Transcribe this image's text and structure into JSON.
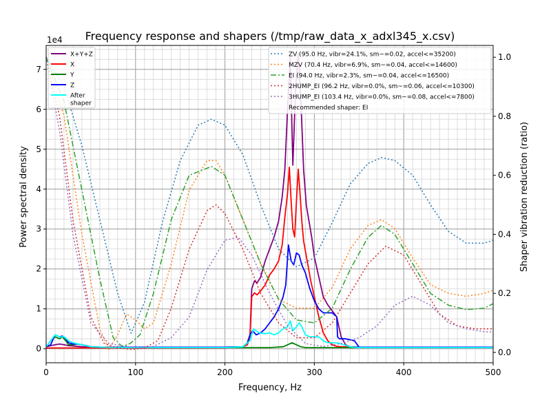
{
  "chart_data": {
    "type": "line",
    "title": "Frequency response and shapers (/tmp/raw_data_x_adxl345_x.csv)",
    "xlabel": "Frequency, Hz",
    "ylabel": "Power spectral density",
    "y2label": "Shaper vibration reduction (ratio)",
    "y_multiplier": "1e4",
    "xlim": [
      0,
      500
    ],
    "ylim": [
      -0.35,
      7.6
    ],
    "y2lim": [
      -0.035,
      1.04
    ],
    "x_ticks": [
      0,
      100,
      200,
      300,
      400,
      500
    ],
    "y_ticks": [
      0,
      1,
      2,
      3,
      4,
      5,
      6,
      7
    ],
    "y2_ticks": [
      0.0,
      0.2,
      0.4,
      0.6,
      0.8,
      1.0
    ],
    "grid": true,
    "legend_left": {
      "placement": "upper-left",
      "entries": [
        {
          "name": "X+Y+Z",
          "color": "#800080"
        },
        {
          "name": "X",
          "color": "#ff0000"
        },
        {
          "name": "Y",
          "color": "#008000"
        },
        {
          "name": "Z",
          "color": "#0000ff"
        },
        {
          "name": "After\nshaper",
          "color": "#00ffff"
        }
      ]
    },
    "legend_right": {
      "placement": "upper-right",
      "entries": [
        {
          "name": "ZV (95.0 Hz, vibr=24.1%, sm~=0.02, accel<=35200)",
          "color": "#1f77b4"
        },
        {
          "name": "MZV (70.4 Hz, vibr=6.9%, sm~=0.04, accel<=14600)",
          "color": "#ff7f0e"
        },
        {
          "name": "EI (94.0 Hz, vibr=2.3%, sm~=0.04, accel<=16500)",
          "color": "#2ca02c"
        },
        {
          "name": "2HUMP_EI (96.2 Hz, vibr=0.0%, sm~=0.06, accel<=10300)",
          "color": "#d62728"
        },
        {
          "name": "3HUMP_EI (103.4 Hz, vibr=0.0%, sm~=0.08, accel<=7800)",
          "color": "#9467bd"
        }
      ],
      "note": "Recommended shaper: EI"
    },
    "series": [
      {
        "name": "X+Y+Z",
        "axis": "left",
        "color": "#800080",
        "width": 1.8,
        "dash": "",
        "x": [
          0,
          5,
          10,
          15,
          20,
          25,
          30,
          35,
          40,
          50,
          60,
          80,
          100,
          150,
          200,
          220,
          225,
          228,
          230,
          233,
          236,
          240,
          245,
          250,
          255,
          260,
          264,
          267,
          270,
          273,
          276,
          279,
          282,
          285,
          288,
          291,
          294,
          297,
          300,
          305,
          310,
          315,
          320,
          325,
          330,
          335,
          340,
          345,
          350,
          400,
          450,
          500
        ],
        "y": [
          0.05,
          0.08,
          0.1,
          0.12,
          0.1,
          0.08,
          0.07,
          0.06,
          0.05,
          0.05,
          0.04,
          0.04,
          0.04,
          0.04,
          0.04,
          0.05,
          0.1,
          0.3,
          1.5,
          1.7,
          1.65,
          1.8,
          2.2,
          2.5,
          2.8,
          3.2,
          3.8,
          4.5,
          6.0,
          7.3,
          4.6,
          6.5,
          7.4,
          6.2,
          4.5,
          3.6,
          3.2,
          2.8,
          2.3,
          1.8,
          1.3,
          1.1,
          0.95,
          0.8,
          0.3,
          0.1,
          0.05,
          0.05,
          0.04,
          0.04,
          0.04,
          0.04
        ]
      },
      {
        "name": "X",
        "axis": "left",
        "color": "#ff0000",
        "width": 1.8,
        "dash": "",
        "x": [
          0,
          50,
          100,
          150,
          200,
          220,
          225,
          228,
          230,
          233,
          236,
          240,
          245,
          250,
          255,
          260,
          264,
          267,
          270,
          272,
          274,
          276,
          278,
          280,
          282,
          284,
          286,
          288,
          292,
          296,
          300,
          305,
          310,
          315,
          320,
          325,
          330,
          335,
          340,
          350,
          400,
          500
        ],
        "y": [
          0.02,
          0.02,
          0.02,
          0.02,
          0.02,
          0.05,
          0.1,
          0.3,
          1.3,
          1.4,
          1.35,
          1.45,
          1.6,
          1.85,
          2.0,
          2.2,
          2.6,
          3.3,
          3.9,
          4.55,
          3.7,
          3.0,
          2.8,
          3.7,
          4.5,
          3.9,
          3.2,
          2.7,
          2.2,
          1.7,
          1.3,
          0.8,
          0.4,
          0.2,
          0.1,
          0.06,
          0.05,
          0.05,
          0.04,
          0.03,
          0.03,
          0.03
        ]
      },
      {
        "name": "Y",
        "axis": "left",
        "color": "#008000",
        "width": 1.8,
        "dash": "",
        "x": [
          0,
          5,
          10,
          15,
          18,
          22,
          25,
          30,
          35,
          40,
          45,
          50,
          55,
          60,
          70,
          80,
          100,
          150,
          200,
          250,
          265,
          270,
          275,
          280,
          285,
          290,
          300,
          320,
          350,
          400,
          500
        ],
        "y": [
          0.05,
          0.2,
          0.3,
          0.25,
          0.3,
          0.2,
          0.1,
          0.1,
          0.12,
          0.1,
          0.08,
          0.05,
          0.05,
          0.04,
          0.04,
          0.03,
          0.03,
          0.03,
          0.03,
          0.03,
          0.05,
          0.1,
          0.15,
          0.1,
          0.05,
          0.03,
          0.03,
          0.03,
          0.03,
          0.03,
          0.03
        ]
      },
      {
        "name": "Z",
        "axis": "left",
        "color": "#0000ff",
        "width": 1.8,
        "dash": "",
        "x": [
          0,
          5,
          10,
          15,
          18,
          22,
          25,
          30,
          35,
          40,
          45,
          50,
          60,
          80,
          100,
          150,
          200,
          220,
          225,
          228,
          231,
          235,
          240,
          245,
          250,
          255,
          260,
          265,
          268,
          271,
          274,
          277,
          280,
          283,
          286,
          290,
          295,
          300,
          305,
          310,
          315,
          320,
          325,
          326,
          328,
          335,
          345,
          350,
          400,
          500
        ],
        "y": [
          0.05,
          0.1,
          0.35,
          0.3,
          0.32,
          0.25,
          0.15,
          0.12,
          0.12,
          0.1,
          0.08,
          0.05,
          0.04,
          0.04,
          0.04,
          0.04,
          0.04,
          0.05,
          0.15,
          0.35,
          0.45,
          0.35,
          0.4,
          0.5,
          0.65,
          0.8,
          1.0,
          1.3,
          1.6,
          2.6,
          2.2,
          2.1,
          2.4,
          2.35,
          2.1,
          1.9,
          1.5,
          1.2,
          1.0,
          0.9,
          0.9,
          0.9,
          0.8,
          0.3,
          0.25,
          0.25,
          0.2,
          0.04,
          0.04,
          0.04
        ]
      },
      {
        "name": "After shaper",
        "axis": "left",
        "color": "#00ffff",
        "width": 1.8,
        "dash": "",
        "x": [
          0,
          5,
          10,
          15,
          20,
          25,
          30,
          40,
          50,
          60,
          80,
          100,
          200,
          220,
          228,
          232,
          238,
          245,
          250,
          255,
          260,
          265,
          270,
          273,
          276,
          280,
          283,
          286,
          290,
          295,
          300,
          305,
          310,
          315,
          320,
          325,
          330,
          340,
          350,
          500
        ],
        "y": [
          0.05,
          0.2,
          0.35,
          0.3,
          0.3,
          0.2,
          0.15,
          0.1,
          0.05,
          0.04,
          0.03,
          0.03,
          0.03,
          0.05,
          0.2,
          0.5,
          0.4,
          0.38,
          0.4,
          0.35,
          0.4,
          0.5,
          0.55,
          0.7,
          0.45,
          0.55,
          0.65,
          0.55,
          0.35,
          0.3,
          0.3,
          0.3,
          0.2,
          0.15,
          0.15,
          0.15,
          0.12,
          0.05,
          0.03,
          0.03
        ]
      },
      {
        "name": "ZV",
        "axis": "right",
        "color": "#1f77b4",
        "width": 1.5,
        "dash": "2,3",
        "x": [
          0,
          20,
          40,
          60,
          80,
          95,
          110,
          130,
          150,
          170,
          185,
          200,
          220,
          240,
          260,
          280,
          300,
          320,
          340,
          360,
          375,
          390,
          410,
          430,
          450,
          470,
          490,
          500
        ],
        "y": [
          1.0,
          0.9,
          0.7,
          0.45,
          0.2,
          0.065,
          0.17,
          0.44,
          0.65,
          0.77,
          0.79,
          0.77,
          0.67,
          0.5,
          0.35,
          0.29,
          0.32,
          0.44,
          0.57,
          0.64,
          0.66,
          0.65,
          0.6,
          0.5,
          0.41,
          0.37,
          0.37,
          0.38
        ]
      },
      {
        "name": "MZV",
        "axis": "right",
        "color": "#ff7f0e",
        "width": 1.5,
        "dash": "2,3",
        "x": [
          0,
          20,
          40,
          60,
          70,
          80,
          90,
          100,
          110,
          120,
          140,
          160,
          180,
          190,
          200,
          220,
          240,
          260,
          280,
          300,
          320,
          340,
          360,
          375,
          390,
          410,
          430,
          450,
          470,
          490,
          500
        ],
        "y": [
          1.0,
          0.8,
          0.4,
          0.08,
          0.01,
          0.06,
          0.13,
          0.11,
          0.08,
          0.1,
          0.3,
          0.55,
          0.65,
          0.65,
          0.6,
          0.45,
          0.3,
          0.18,
          0.15,
          0.15,
          0.22,
          0.35,
          0.43,
          0.45,
          0.42,
          0.32,
          0.23,
          0.2,
          0.19,
          0.2,
          0.21
        ]
      },
      {
        "name": "EI",
        "axis": "right",
        "color": "#2ca02c",
        "width": 1.5,
        "dash": "8,3,2,3",
        "x": [
          0,
          20,
          40,
          60,
          75,
          85,
          94,
          105,
          120,
          140,
          160,
          185,
          200,
          220,
          240,
          260,
          280,
          300,
          320,
          340,
          360,
          375,
          390,
          410,
          430,
          450,
          470,
          490,
          500
        ],
        "y": [
          1.0,
          0.85,
          0.55,
          0.25,
          0.05,
          0.02,
          0.03,
          0.06,
          0.2,
          0.45,
          0.6,
          0.63,
          0.6,
          0.45,
          0.3,
          0.18,
          0.11,
          0.1,
          0.15,
          0.28,
          0.39,
          0.43,
          0.4,
          0.3,
          0.2,
          0.16,
          0.145,
          0.15,
          0.165
        ]
      },
      {
        "name": "2HUMP_EI",
        "axis": "right",
        "color": "#d62728",
        "width": 1.5,
        "dash": "2,3",
        "x": [
          0,
          15,
          30,
          50,
          65,
          80,
          96,
          110,
          125,
          140,
          160,
          180,
          190,
          200,
          220,
          240,
          260,
          280,
          300,
          320,
          340,
          360,
          380,
          400,
          420,
          440,
          460,
          480,
          500
        ],
        "y": [
          1.0,
          0.8,
          0.45,
          0.12,
          0.03,
          0.015,
          0.01,
          0.015,
          0.04,
          0.15,
          0.35,
          0.48,
          0.5,
          0.47,
          0.35,
          0.2,
          0.1,
          0.05,
          0.05,
          0.1,
          0.2,
          0.3,
          0.36,
          0.33,
          0.23,
          0.13,
          0.09,
          0.08,
          0.08
        ]
      },
      {
        "name": "3HUMP_EI",
        "axis": "right",
        "color": "#9467bd",
        "width": 1.5,
        "dash": "2,3",
        "x": [
          0,
          15,
          30,
          50,
          70,
          90,
          103,
          120,
          140,
          160,
          180,
          200,
          215,
          230,
          250,
          270,
          290,
          310,
          330,
          350,
          370,
          390,
          410,
          430,
          450,
          470,
          490,
          500
        ],
        "y": [
          1.0,
          0.75,
          0.4,
          0.1,
          0.03,
          0.02,
          0.015,
          0.02,
          0.05,
          0.12,
          0.28,
          0.38,
          0.39,
          0.33,
          0.2,
          0.09,
          0.03,
          0.02,
          0.03,
          0.05,
          0.09,
          0.16,
          0.19,
          0.16,
          0.1,
          0.08,
          0.07,
          0.07
        ]
      }
    ]
  }
}
